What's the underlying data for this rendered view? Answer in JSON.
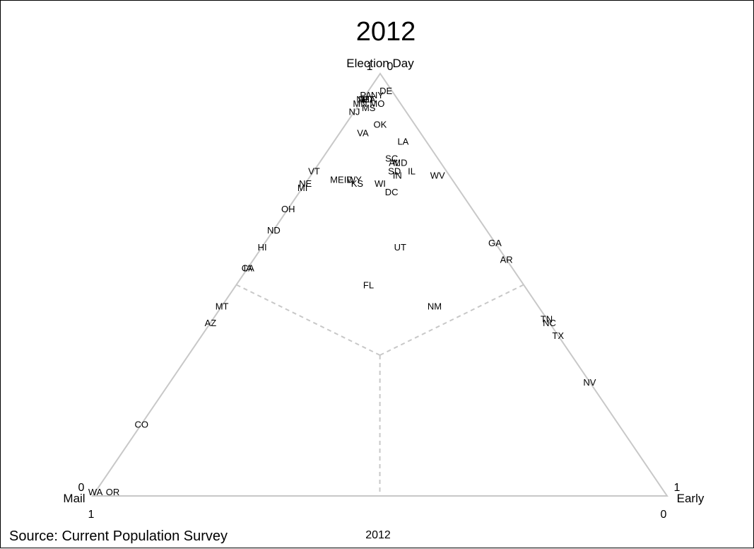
{
  "chart_data": {
    "type": "scatter",
    "subtype": "ternary",
    "title": "2012",
    "vertex_labels": {
      "top": "Election Day",
      "left": "Mail",
      "right": "Early"
    },
    "tick_labels": {
      "top_one": "1",
      "top_zero": "0",
      "left_zero": "0",
      "left_one": "1",
      "right_one": "1",
      "right_zero": "0"
    },
    "grid": "dashed region boundaries meeting at the centroid",
    "points": [
      {
        "label": "DE",
        "election_day": 0.96,
        "early": 0.03,
        "mail": 0.01
      },
      {
        "label": "NY",
        "election_day": 0.95,
        "early": 0.02,
        "mail": 0.03
      },
      {
        "label": "PA",
        "election_day": 0.95,
        "early": 0.0,
        "mail": 0.05
      },
      {
        "label": "RI",
        "election_day": 0.94,
        "early": 0.0,
        "mail": 0.06
      },
      {
        "label": "MA",
        "election_day": 0.94,
        "early": 0.01,
        "mail": 0.05
      },
      {
        "label": "CT",
        "election_day": 0.94,
        "early": 0.01,
        "mail": 0.05
      },
      {
        "label": "NH",
        "election_day": 0.94,
        "early": 0.0,
        "mail": 0.06
      },
      {
        "label": "MN",
        "election_day": 0.93,
        "early": 0.0,
        "mail": 0.07
      },
      {
        "label": "MO",
        "election_day": 0.93,
        "early": 0.03,
        "mail": 0.04
      },
      {
        "label": "MS",
        "election_day": 0.92,
        "early": 0.02,
        "mail": 0.06
      },
      {
        "label": "NJ",
        "election_day": 0.91,
        "early": 0.0,
        "mail": 0.09
      },
      {
        "label": "OK",
        "election_day": 0.88,
        "early": 0.06,
        "mail": 0.06
      },
      {
        "label": "VA",
        "election_day": 0.86,
        "early": 0.04,
        "mail": 0.1
      },
      {
        "label": "LA",
        "election_day": 0.84,
        "early": 0.12,
        "mail": 0.04
      },
      {
        "label": "SC",
        "election_day": 0.8,
        "early": 0.12,
        "mail": 0.08
      },
      {
        "label": "AL",
        "election_day": 0.79,
        "early": 0.13,
        "mail": 0.08
      },
      {
        "label": "MD",
        "election_day": 0.79,
        "early": 0.14,
        "mail": 0.07
      },
      {
        "label": "SD",
        "election_day": 0.77,
        "early": 0.14,
        "mail": 0.09
      },
      {
        "label": "IL",
        "election_day": 0.77,
        "early": 0.17,
        "mail": 0.06
      },
      {
        "label": "IN",
        "election_day": 0.76,
        "early": 0.15,
        "mail": 0.09
      },
      {
        "label": "WV",
        "election_day": 0.76,
        "early": 0.22,
        "mail": 0.02
      },
      {
        "label": "VT",
        "election_day": 0.77,
        "early": 0.0,
        "mail": 0.23
      },
      {
        "label": "NE",
        "election_day": 0.74,
        "early": 0.0,
        "mail": 0.26
      },
      {
        "label": "ME",
        "election_day": 0.75,
        "early": 0.05,
        "mail": 0.2
      },
      {
        "label": "ID",
        "election_day": 0.75,
        "early": 0.07,
        "mail": 0.18
      },
      {
        "label": "WY",
        "election_day": 0.75,
        "early": 0.08,
        "mail": 0.17
      },
      {
        "label": "KS",
        "election_day": 0.74,
        "early": 0.09,
        "mail": 0.17
      },
      {
        "label": "WI",
        "election_day": 0.74,
        "early": 0.13,
        "mail": 0.13
      },
      {
        "label": "MI",
        "election_day": 0.73,
        "early": 0.0,
        "mail": 0.27
      },
      {
        "label": "DC",
        "election_day": 0.72,
        "early": 0.16,
        "mail": 0.12
      },
      {
        "label": "OH",
        "election_day": 0.68,
        "early": 0.0,
        "mail": 0.32
      },
      {
        "label": "ND",
        "election_day": 0.63,
        "early": 0.0,
        "mail": 0.37
      },
      {
        "label": "HI",
        "election_day": 0.59,
        "early": 0.0,
        "mail": 0.41
      },
      {
        "label": "UT",
        "election_day": 0.59,
        "early": 0.24,
        "mail": 0.17
      },
      {
        "label": "GA",
        "election_day": 0.6,
        "early": 0.4,
        "mail": 0.0
      },
      {
        "label": "AR",
        "election_day": 0.56,
        "early": 0.44,
        "mail": 0.0
      },
      {
        "label": "IA",
        "election_day": 0.54,
        "early": 0.0,
        "mail": 0.46
      },
      {
        "label": "CA",
        "election_day": 0.54,
        "early": 0.0,
        "mail": 0.46
      },
      {
        "label": "FL",
        "election_day": 0.5,
        "early": 0.23,
        "mail": 0.27
      },
      {
        "label": "MT",
        "election_day": 0.45,
        "early": 0.0,
        "mail": 0.55
      },
      {
        "label": "NM",
        "election_day": 0.45,
        "early": 0.37,
        "mail": 0.18
      },
      {
        "label": "AZ",
        "election_day": 0.41,
        "early": 0.0,
        "mail": 0.59
      },
      {
        "label": "TN",
        "election_day": 0.42,
        "early": 0.58,
        "mail": 0.0
      },
      {
        "label": "NC",
        "election_day": 0.41,
        "early": 0.59,
        "mail": 0.0
      },
      {
        "label": "TX",
        "election_day": 0.38,
        "early": 0.62,
        "mail": 0.0
      },
      {
        "label": "NV",
        "election_day": 0.27,
        "early": 0.73,
        "mail": 0.0
      },
      {
        "label": "CO",
        "election_day": 0.17,
        "early": 0.0,
        "mail": 0.83
      },
      {
        "label": "WA",
        "election_day": 0.01,
        "early": 0.0,
        "mail": 0.99
      },
      {
        "label": "OR",
        "election_day": 0.01,
        "early": 0.03,
        "mail": 0.96
      }
    ]
  },
  "footer": {
    "source": "Source:  Current Population Survey",
    "caption": "2012"
  }
}
